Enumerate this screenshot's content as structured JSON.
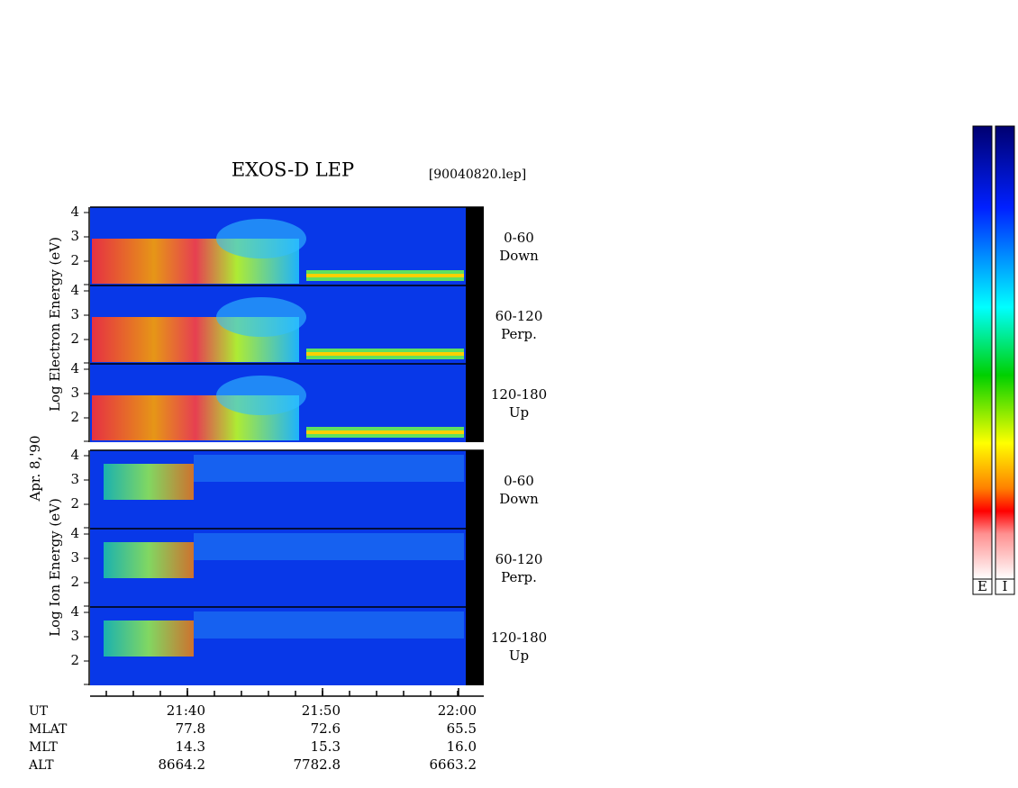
{
  "header": {
    "title": "EXOS-D LEP",
    "file": "[90040820.lep]",
    "date": "Apr. 8,'90"
  },
  "axis_labels": {
    "electron": "Log Electron Energy (eV)",
    "ion": "Log Ion Energy (eV)"
  },
  "panels": [
    {
      "species": "electron",
      "angle": "0-60",
      "direction": "Down",
      "yticks": [
        4,
        3,
        2
      ]
    },
    {
      "species": "electron",
      "angle": "60-120",
      "direction": "Perp.",
      "yticks": [
        4,
        3,
        2
      ]
    },
    {
      "species": "electron",
      "angle": "120-180",
      "direction": "Up",
      "yticks": [
        4,
        3,
        2
      ]
    },
    {
      "species": "ion",
      "angle": "0-60",
      "direction": "Down",
      "yticks": [
        4,
        3,
        2
      ]
    },
    {
      "species": "ion",
      "angle": "60-120",
      "direction": "Perp.",
      "yticks": [
        4,
        3,
        2
      ]
    },
    {
      "species": "ion",
      "angle": "120-180",
      "direction": "Up",
      "yticks": [
        4,
        3,
        2
      ]
    }
  ],
  "time_axis": {
    "ticks": [
      "21:40",
      "21:50",
      "22:00"
    ]
  },
  "ephemeris": {
    "labels": [
      "UT",
      "MLAT",
      "MLT",
      "ALT"
    ],
    "rows": [
      [
        "77.8",
        "72.6",
        "65.5"
      ],
      [
        "14.3",
        "15.3",
        "16.0"
      ],
      [
        "8664.2",
        "7782.8",
        "6663.2"
      ]
    ]
  },
  "colorbars": [
    "E",
    "I"
  ]
}
